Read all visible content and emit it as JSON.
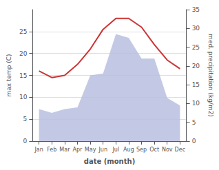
{
  "chart_data": {
    "type": "line",
    "categories": [
      "Jan",
      "Feb",
      "Mar",
      "Apr",
      "May",
      "Jun",
      "Jul",
      "Aug",
      "Sep",
      "Oct",
      "Nov",
      "Dec"
    ],
    "xlabel": "date (month)",
    "ylabel": "max temp (C)",
    "y2label": "med. precipitation (kg/m2)",
    "series": [
      {
        "type": "line",
        "color": "#cc3333",
        "values": [
          16.0,
          14.5,
          15.0,
          17.5,
          21.0,
          25.5,
          28.0,
          28.0,
          26.0,
          22.0,
          18.5,
          16.5
        ]
      },
      {
        "type": "area",
        "color": "#b8c0e0",
        "axis": "y2",
        "values": [
          8.5,
          7.5,
          8.5,
          9.0,
          17.5,
          18.0,
          28.5,
          27.5,
          22.0,
          22.0,
          11.5,
          9.5
        ]
      }
    ],
    "ylim": [
      0,
      30
    ],
    "yticks": [
      0,
      5,
      10,
      15,
      20,
      25
    ],
    "y2lim": [
      0,
      35
    ],
    "y2ticks": [
      0,
      5,
      10,
      15,
      20,
      25,
      30,
      35
    ],
    "grid": true
  }
}
